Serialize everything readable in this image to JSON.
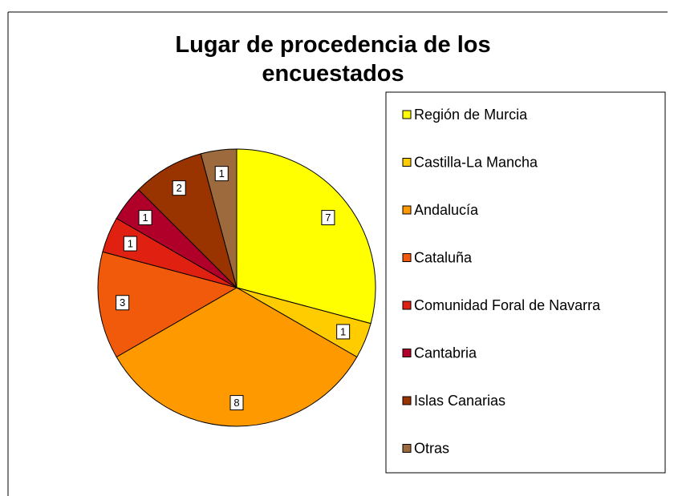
{
  "chart_data": {
    "type": "pie",
    "title": "Lugar de procedencia de los encuestados",
    "categories": [
      "Región de Murcia",
      "Castilla-La Mancha",
      "Andalucía",
      "Cataluña",
      "Comunidad Foral de Navarra",
      "Cantabria",
      "Islas Canarias",
      "Otras"
    ],
    "values": [
      7,
      1,
      8,
      3,
      1,
      1,
      2,
      1
    ],
    "colors": [
      "#ffff00",
      "#ffcc00",
      "#ff9900",
      "#f05a0a",
      "#e02010",
      "#b0002a",
      "#993300",
      "#9c6a3c"
    ],
    "legend": "right"
  }
}
